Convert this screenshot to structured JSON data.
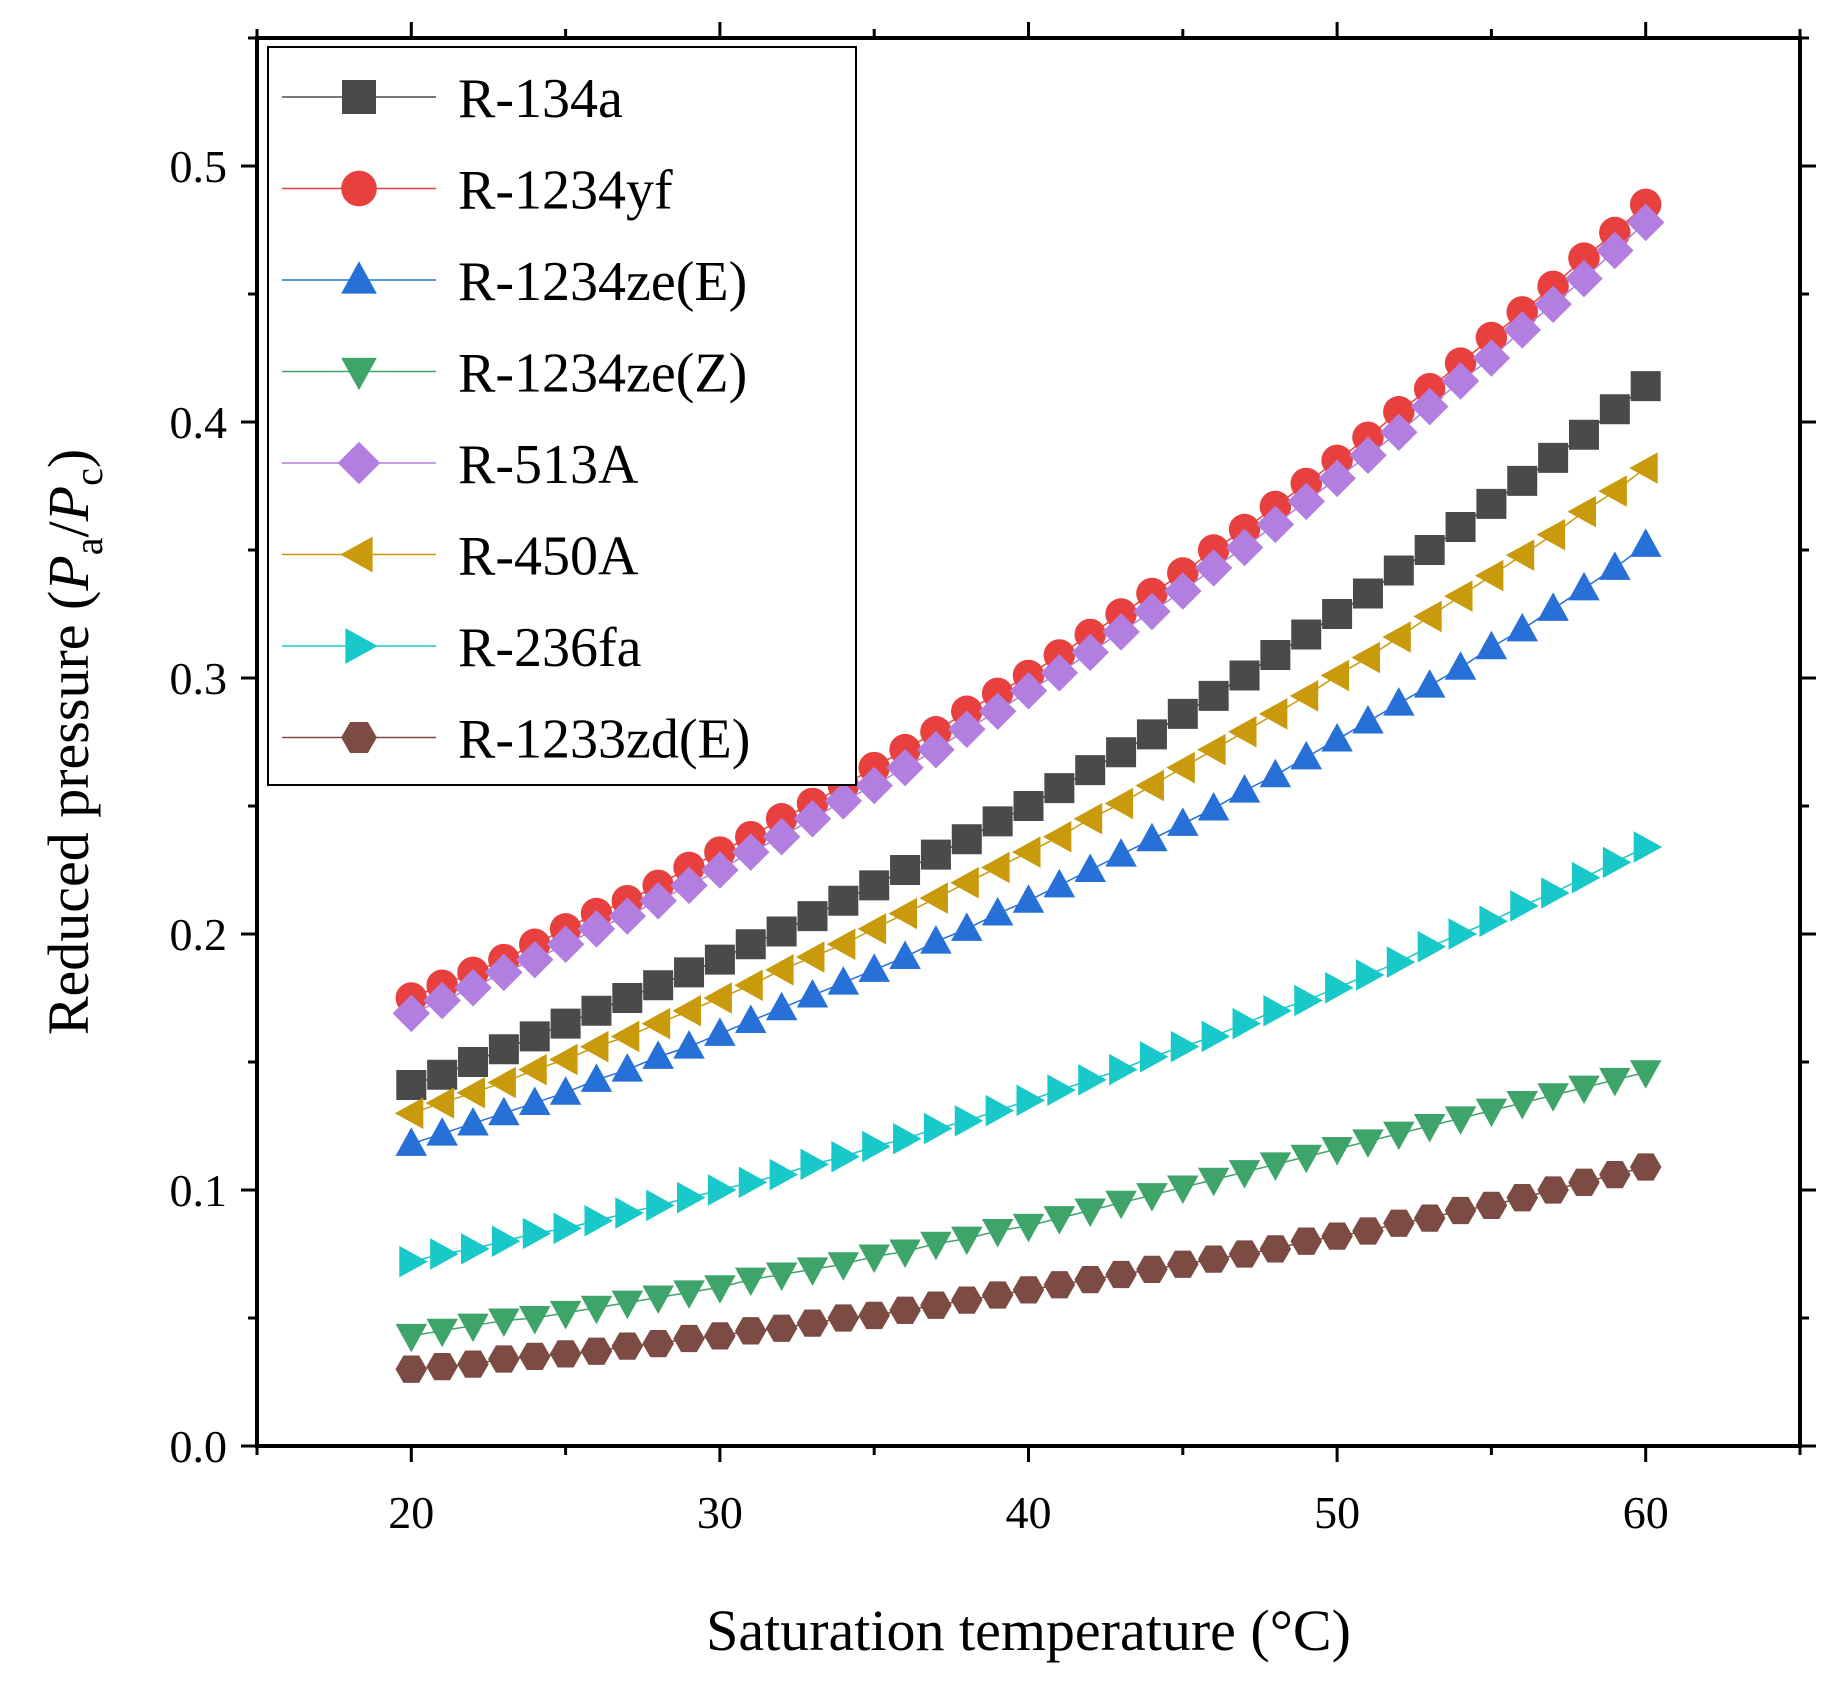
{
  "chart_data": {
    "type": "line",
    "title": "",
    "xlabel": "Saturation temperature (°C)",
    "ylabel": {
      "prefix": "Reduced pressure (",
      "num_var": "P",
      "num_sub": "a",
      "slash": "/",
      "den_var": "P",
      "den_sub": "c",
      "suffix": ")"
    },
    "xlim": [
      15,
      65
    ],
    "ylim": [
      0,
      0.55
    ],
    "x_ticks": [
      20,
      30,
      40,
      50,
      60
    ],
    "y_ticks": [
      0.0,
      0.1,
      0.2,
      0.3,
      0.4,
      0.5
    ],
    "y_tick_labels": [
      "0.0",
      "0.1",
      "0.2",
      "0.3",
      "0.4",
      "0.5"
    ],
    "grid": false,
    "legend_position": "top-left",
    "x": [
      20,
      21,
      22,
      23,
      24,
      25,
      26,
      27,
      28,
      29,
      30,
      31,
      32,
      33,
      34,
      35,
      36,
      37,
      38,
      39,
      40,
      41,
      42,
      43,
      44,
      45,
      46,
      47,
      48,
      49,
      50,
      51,
      52,
      53,
      54,
      55,
      56,
      57,
      58,
      59,
      60
    ],
    "series": [
      {
        "name": "R-134a",
        "marker": "square",
        "color": "#4a4a4a",
        "values": [
          0.141,
          0.145,
          0.15,
          0.155,
          0.16,
          0.165,
          0.17,
          0.175,
          0.18,
          0.185,
          0.19,
          0.196,
          0.201,
          0.207,
          0.213,
          0.219,
          0.225,
          0.231,
          0.237,
          0.244,
          0.25,
          0.257,
          0.264,
          0.271,
          0.278,
          0.286,
          0.293,
          0.301,
          0.309,
          0.317,
          0.325,
          0.333,
          0.342,
          0.35,
          0.359,
          0.368,
          0.377,
          0.386,
          0.395,
          0.405,
          0.414
        ]
      },
      {
        "name": "R-1234yf",
        "marker": "circle",
        "color": "#e8403f",
        "values": [
          0.175,
          0.18,
          0.185,
          0.19,
          0.196,
          0.202,
          0.208,
          0.213,
          0.219,
          0.226,
          0.232,
          0.238,
          0.245,
          0.251,
          0.258,
          0.265,
          0.272,
          0.279,
          0.287,
          0.294,
          0.301,
          0.309,
          0.317,
          0.325,
          0.333,
          0.341,
          0.35,
          0.358,
          0.367,
          0.376,
          0.385,
          0.394,
          0.404,
          0.413,
          0.423,
          0.433,
          0.443,
          0.453,
          0.464,
          0.474,
          0.485
        ]
      },
      {
        "name": "R-1234ze(E)",
        "marker": "triangle-up",
        "color": "#2670d8",
        "values": [
          0.118,
          0.122,
          0.126,
          0.13,
          0.134,
          0.138,
          0.143,
          0.147,
          0.152,
          0.156,
          0.161,
          0.166,
          0.171,
          0.176,
          0.181,
          0.186,
          0.191,
          0.197,
          0.202,
          0.208,
          0.213,
          0.219,
          0.225,
          0.231,
          0.237,
          0.243,
          0.249,
          0.256,
          0.262,
          0.269,
          0.276,
          0.283,
          0.29,
          0.297,
          0.304,
          0.312,
          0.319,
          0.327,
          0.335,
          0.343,
          0.352
        ]
      },
      {
        "name": "R-1234ze(Z)",
        "marker": "triangle-down",
        "color": "#3fa46a",
        "values": [
          0.043,
          0.045,
          0.047,
          0.049,
          0.05,
          0.052,
          0.054,
          0.056,
          0.058,
          0.06,
          0.062,
          0.065,
          0.067,
          0.069,
          0.071,
          0.074,
          0.076,
          0.079,
          0.081,
          0.084,
          0.086,
          0.089,
          0.092,
          0.095,
          0.098,
          0.101,
          0.104,
          0.107,
          0.11,
          0.113,
          0.116,
          0.119,
          0.122,
          0.125,
          0.128,
          0.131,
          0.134,
          0.137,
          0.14,
          0.143,
          0.146
        ]
      },
      {
        "name": "R-513A",
        "marker": "diamond",
        "color": "#b27ee0",
        "values": [
          0.169,
          0.174,
          0.179,
          0.185,
          0.19,
          0.196,
          0.202,
          0.207,
          0.213,
          0.219,
          0.225,
          0.232,
          0.238,
          0.245,
          0.252,
          0.258,
          0.265,
          0.272,
          0.28,
          0.287,
          0.295,
          0.302,
          0.31,
          0.318,
          0.326,
          0.334,
          0.343,
          0.351,
          0.36,
          0.369,
          0.378,
          0.387,
          0.396,
          0.406,
          0.416,
          0.425,
          0.436,
          0.446,
          0.456,
          0.467,
          0.478
        ]
      },
      {
        "name": "R-450A",
        "marker": "triangle-left",
        "color": "#c99a0c",
        "values": [
          0.13,
          0.134,
          0.138,
          0.142,
          0.147,
          0.151,
          0.156,
          0.16,
          0.165,
          0.17,
          0.175,
          0.18,
          0.186,
          0.191,
          0.196,
          0.202,
          0.208,
          0.214,
          0.22,
          0.226,
          0.232,
          0.238,
          0.245,
          0.251,
          0.258,
          0.265,
          0.272,
          0.279,
          0.286,
          0.293,
          0.301,
          0.308,
          0.316,
          0.324,
          0.332,
          0.34,
          0.348,
          0.356,
          0.365,
          0.373,
          0.382
        ]
      },
      {
        "name": "R-236fa",
        "marker": "triangle-right",
        "color": "#19c8c8",
        "values": [
          0.072,
          0.075,
          0.077,
          0.08,
          0.083,
          0.085,
          0.088,
          0.091,
          0.094,
          0.097,
          0.1,
          0.103,
          0.106,
          0.11,
          0.113,
          0.117,
          0.12,
          0.124,
          0.127,
          0.131,
          0.135,
          0.139,
          0.143,
          0.147,
          0.152,
          0.156,
          0.16,
          0.165,
          0.17,
          0.174,
          0.179,
          0.184,
          0.189,
          0.195,
          0.2,
          0.205,
          0.211,
          0.216,
          0.222,
          0.228,
          0.234
        ]
      },
      {
        "name": "R-1233zd(E)",
        "marker": "hexagon",
        "color": "#7c4b44",
        "values": [
          0.03,
          0.031,
          0.032,
          0.034,
          0.035,
          0.036,
          0.037,
          0.039,
          0.04,
          0.042,
          0.043,
          0.045,
          0.046,
          0.048,
          0.05,
          0.051,
          0.053,
          0.055,
          0.057,
          0.059,
          0.061,
          0.063,
          0.065,
          0.067,
          0.069,
          0.071,
          0.073,
          0.075,
          0.077,
          0.08,
          0.082,
          0.084,
          0.087,
          0.089,
          0.092,
          0.094,
          0.097,
          0.1,
          0.103,
          0.106,
          0.109
        ]
      }
    ]
  }
}
